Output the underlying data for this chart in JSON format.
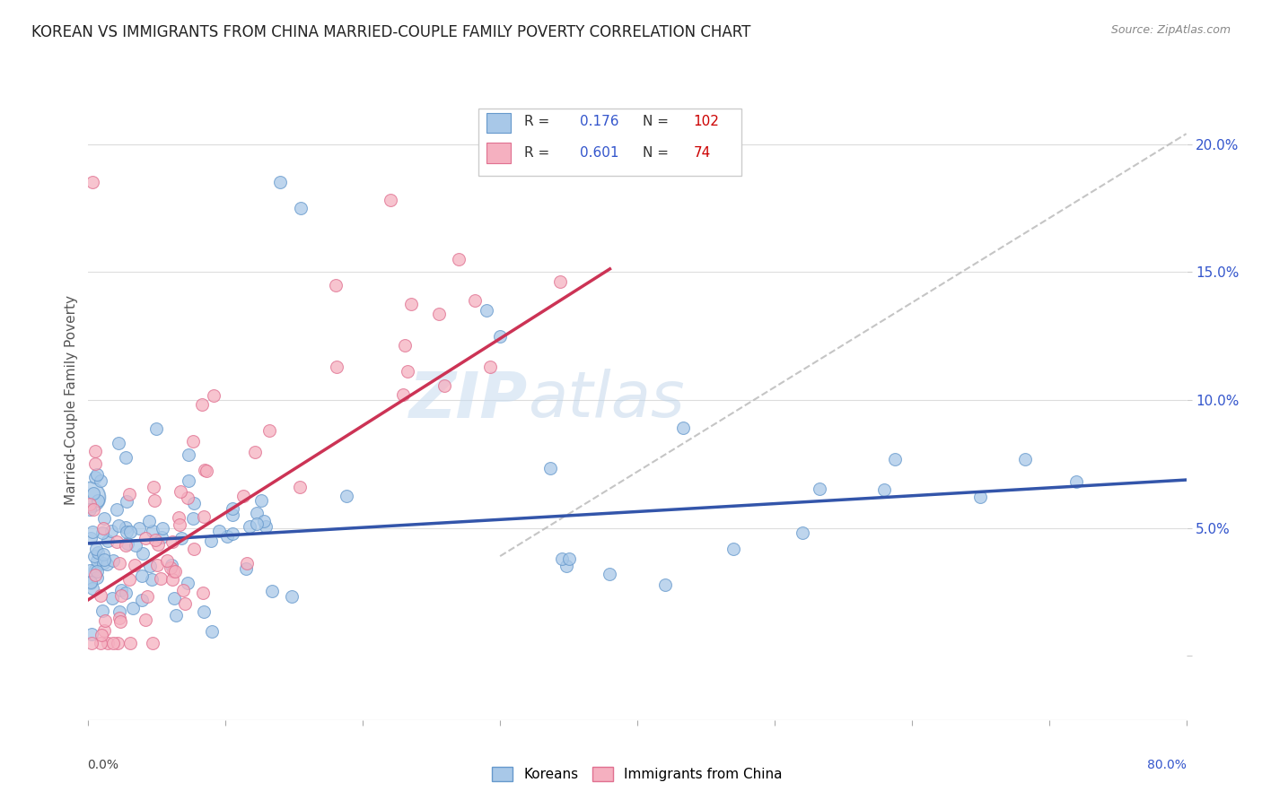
{
  "title": "KOREAN VS IMMIGRANTS FROM CHINA MARRIED-COUPLE FAMILY POVERTY CORRELATION CHART",
  "source": "Source: ZipAtlas.com",
  "ylabel": "Married-Couple Family Poverty",
  "yticks": [
    0.0,
    0.05,
    0.1,
    0.15,
    0.2
  ],
  "ytick_labels": [
    "",
    "5.0%",
    "10.0%",
    "15.0%",
    "20.0%"
  ],
  "xlim": [
    0.0,
    0.8
  ],
  "ylim": [
    -0.025,
    0.225
  ],
  "korean_color": "#A8C8E8",
  "korean_edge_color": "#6699CC",
  "china_color": "#F5B0C0",
  "china_edge_color": "#E07090",
  "korean_R": 0.176,
  "korean_N": 102,
  "china_R": 0.601,
  "china_N": 74,
  "regression_korean_color": "#3355AA",
  "regression_china_color": "#CC3355",
  "dashed_line_color": "#BBBBBB",
  "watermark_zip": "ZIP",
  "watermark_atlas": "atlas",
  "legend_korean_label": "Koreans",
  "legend_china_label": "Immigrants from China",
  "legend_R_color": "#3355CC",
  "legend_N_color": "#CC0000",
  "legend_text_color": "#333333",
  "right_axis_color": "#3355CC",
  "title_color": "#222222",
  "source_color": "#888888"
}
